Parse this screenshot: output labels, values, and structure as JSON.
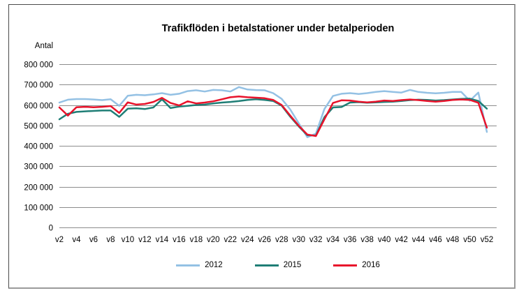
{
  "chart_data": {
    "type": "line",
    "title": "Trafikflöden i betalstationer under betalperioden",
    "ylabel": "Antal",
    "xlabel": "",
    "ylim": [
      0,
      800000
    ],
    "grid": "horizontal",
    "grid_color": "#8c8c8c",
    "legend_position": "bottom",
    "y_ticks": [
      {
        "value": 800000,
        "label": "800 000"
      },
      {
        "value": 700000,
        "label": "700 000"
      },
      {
        "value": 600000,
        "label": "600 000"
      },
      {
        "value": 500000,
        "label": "500 000"
      },
      {
        "value": 400000,
        "label": "400 000"
      },
      {
        "value": 300000,
        "label": "300 000"
      },
      {
        "value": 200000,
        "label": "200 000"
      },
      {
        "value": 100000,
        "label": "100 000"
      },
      {
        "value": 0,
        "label": "0"
      }
    ],
    "categories": [
      "v2",
      "v3",
      "v4",
      "v5",
      "v6",
      "v7",
      "v8",
      "v9",
      "v10",
      "v11",
      "v12",
      "v13",
      "v14",
      "v15",
      "v16",
      "v17",
      "v18",
      "v19",
      "v20",
      "v21",
      "v22",
      "v23",
      "v24",
      "v25",
      "v26",
      "v27",
      "v28",
      "v29",
      "v30",
      "v31",
      "v32",
      "v33",
      "v34",
      "v35",
      "v36",
      "v37",
      "v38",
      "v39",
      "v40",
      "v41",
      "v42",
      "v43",
      "v44",
      "v45",
      "v46",
      "v47",
      "v48",
      "v49",
      "v50",
      "v51",
      "v52"
    ],
    "x_tick_labels": [
      "v2",
      "v4",
      "v6",
      "v8",
      "v10",
      "v12",
      "v14",
      "v16",
      "v18",
      "v20",
      "v22",
      "v24",
      "v26",
      "v28",
      "v30",
      "v32",
      "v34",
      "v36",
      "v38",
      "v40",
      "v42",
      "v44",
      "v46",
      "v48",
      "v50",
      "v52"
    ],
    "series": [
      {
        "name": "2012",
        "color": "#94C1E4",
        "values": [
          612000,
          626000,
          629000,
          629000,
          627000,
          624000,
          628000,
          596000,
          645000,
          650000,
          648000,
          652000,
          658000,
          650000,
          655000,
          668000,
          672000,
          666000,
          674000,
          672000,
          666000,
          688000,
          676000,
          673000,
          672000,
          658000,
          630000,
          578000,
          510000,
          442000,
          460000,
          580000,
          644000,
          655000,
          658000,
          654000,
          658000,
          664000,
          668000,
          664000,
          661000,
          674000,
          664000,
          660000,
          657000,
          660000,
          664000,
          664000,
          621000,
          661000,
          468000
        ]
      },
      {
        "name": "2015",
        "color": "#1F7E76",
        "values": [
          530000,
          557000,
          566000,
          569000,
          571000,
          573000,
          573000,
          542000,
          582000,
          584000,
          580000,
          588000,
          628000,
          585000,
          592000,
          596000,
          600000,
          602000,
          608000,
          612000,
          615000,
          619000,
          625000,
          628000,
          625000,
          620000,
          597000,
          543000,
          495000,
          452000,
          450000,
          540000,
          588000,
          590000,
          612000,
          614000,
          611000,
          613000,
          615000,
          616000,
          620000,
          624000,
          626000,
          625000,
          622000,
          624000,
          627000,
          630000,
          631000,
          620000,
          582000
        ]
      },
      {
        "name": "2016",
        "color": "#E8132B",
        "values": [
          588000,
          548000,
          589000,
          591000,
          589000,
          591000,
          595000,
          561000,
          613000,
          602000,
          605000,
          615000,
          635000,
          610000,
          598000,
          618000,
          608000,
          612000,
          618000,
          628000,
          638000,
          642000,
          638000,
          636000,
          633000,
          625000,
          600000,
          548000,
          498000,
          455000,
          448000,
          530000,
          610000,
          623000,
          622000,
          616000,
          613000,
          616000,
          622000,
          620000,
          624000,
          627000,
          624000,
          620000,
          616000,
          620000,
          625000,
          627000,
          625000,
          611000,
          489000
        ]
      }
    ]
  }
}
